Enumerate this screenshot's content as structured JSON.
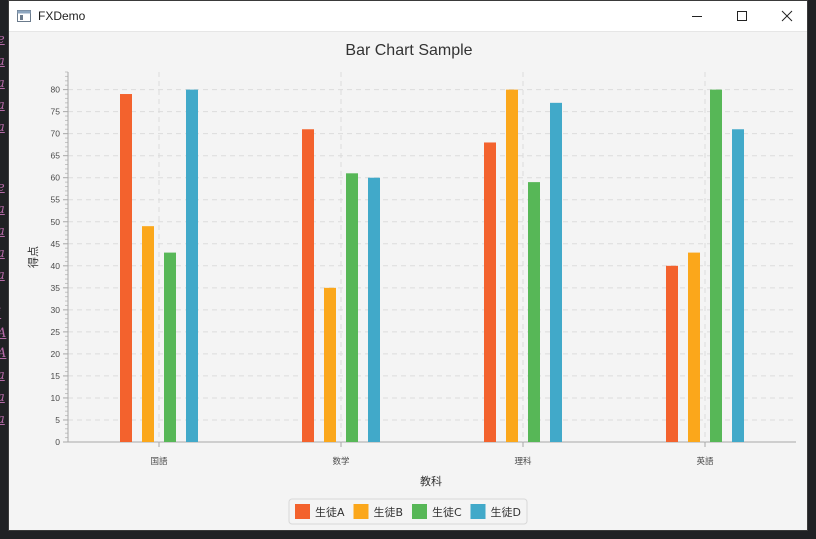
{
  "window": {
    "title": "FXDemo"
  },
  "chart_data": {
    "type": "bar",
    "title": "Bar Chart Sample",
    "xlabel": "教科",
    "ylabel": "得点",
    "categories": [
      "国語",
      "数学",
      "理科",
      "英語"
    ],
    "series": [
      {
        "name": "生徒A",
        "color": "#f3622d",
        "values": [
          79,
          71,
          68,
          40
        ]
      },
      {
        "name": "生徒B",
        "color": "#fba71b",
        "values": [
          49,
          35,
          80,
          43
        ]
      },
      {
        "name": "生徒C",
        "color": "#57b757",
        "values": [
          43,
          61,
          59,
          80
        ]
      },
      {
        "name": "生徒D",
        "color": "#41a9c9",
        "values": [
          80,
          60,
          77,
          71
        ]
      }
    ],
    "ylim": [
      0,
      84
    ],
    "yticks": [
      0,
      5,
      10,
      15,
      20,
      25,
      30,
      35,
      40,
      45,
      50,
      55,
      60,
      65,
      70,
      75,
      80
    ],
    "grid": true,
    "legend": "bottom"
  }
}
